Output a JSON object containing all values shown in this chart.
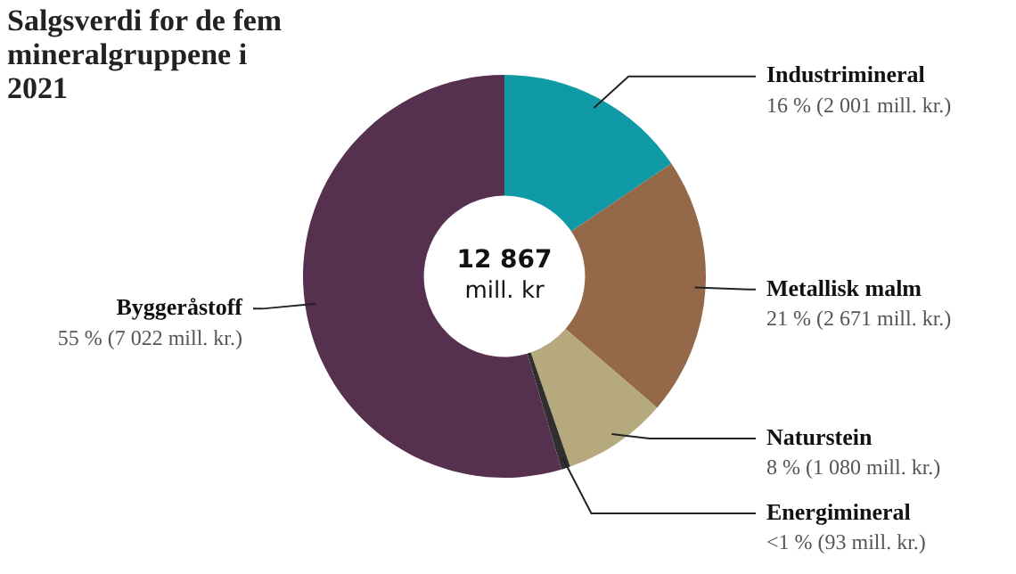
{
  "chart_data": {
    "type": "donut",
    "title": "Salgsverdi for de fem mineralgruppene i 2021",
    "categories": [
      "Industrimineral",
      "Metallisk malm",
      "Naturstein",
      "Energimineral",
      "Byggeråstoff"
    ],
    "values": [
      2001,
      2671,
      1080,
      93,
      7022
    ],
    "colors": [
      "#0f9aa6",
      "#94694a",
      "#b6a97e",
      "#2f2f2f",
      "#55304f"
    ],
    "value_labels": [
      "16 % (2 001 mill. kr.)",
      "21 % (2 671 mill. kr.)",
      "8 % (1 080 mill. kr.)",
      "<1 % (93 mill. kr.)",
      "55 % (7 022 mill. kr.)"
    ],
    "annotations": [
      "12 867",
      "mill. kr"
    ],
    "legend": false
  }
}
